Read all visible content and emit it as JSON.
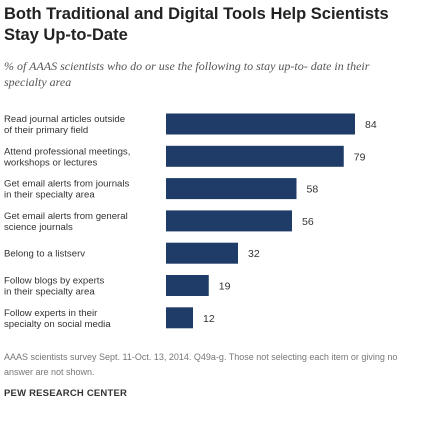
{
  "title": "Both Traditional and Digital Tools Help Scientists Stay Up-to-Date",
  "subtitle": "% of AAAS scientists who do or use the following to stay up-to- date in their specialty area",
  "footnote": "AAAS scientists survey Sept. 11-Oct. 13, 2014. Q49a-g. Those not selecting each item or giving no answer are not shown.",
  "source": "PEW RESEARCH CENTER",
  "colors": {
    "bar": "#1f3b68",
    "label": "#333333",
    "value": "#333333"
  },
  "chart_data": {
    "type": "bar",
    "orientation": "horizontal",
    "categories": [
      [
        "Read journal articles outside",
        "of their primary field"
      ],
      [
        "Attend professional meetings,",
        "workshops or lectures"
      ],
      [
        "Get email alerts from journals",
        "in their specialty area"
      ],
      [
        "Get email alerts from general",
        "science journals"
      ],
      [
        "Belong to a listserv"
      ],
      [
        "Follow blogs by experts",
        "in their specialty area"
      ],
      [
        "Follow experts in their",
        "specialty on social media"
      ]
    ],
    "values": [
      84,
      79,
      58,
      56,
      32,
      19,
      12
    ],
    "data_labels": [
      "84",
      "79",
      "58",
      "56",
      "32",
      "19",
      "12"
    ],
    "xlim": [
      0,
      100
    ],
    "grid": false,
    "legend": "none"
  }
}
